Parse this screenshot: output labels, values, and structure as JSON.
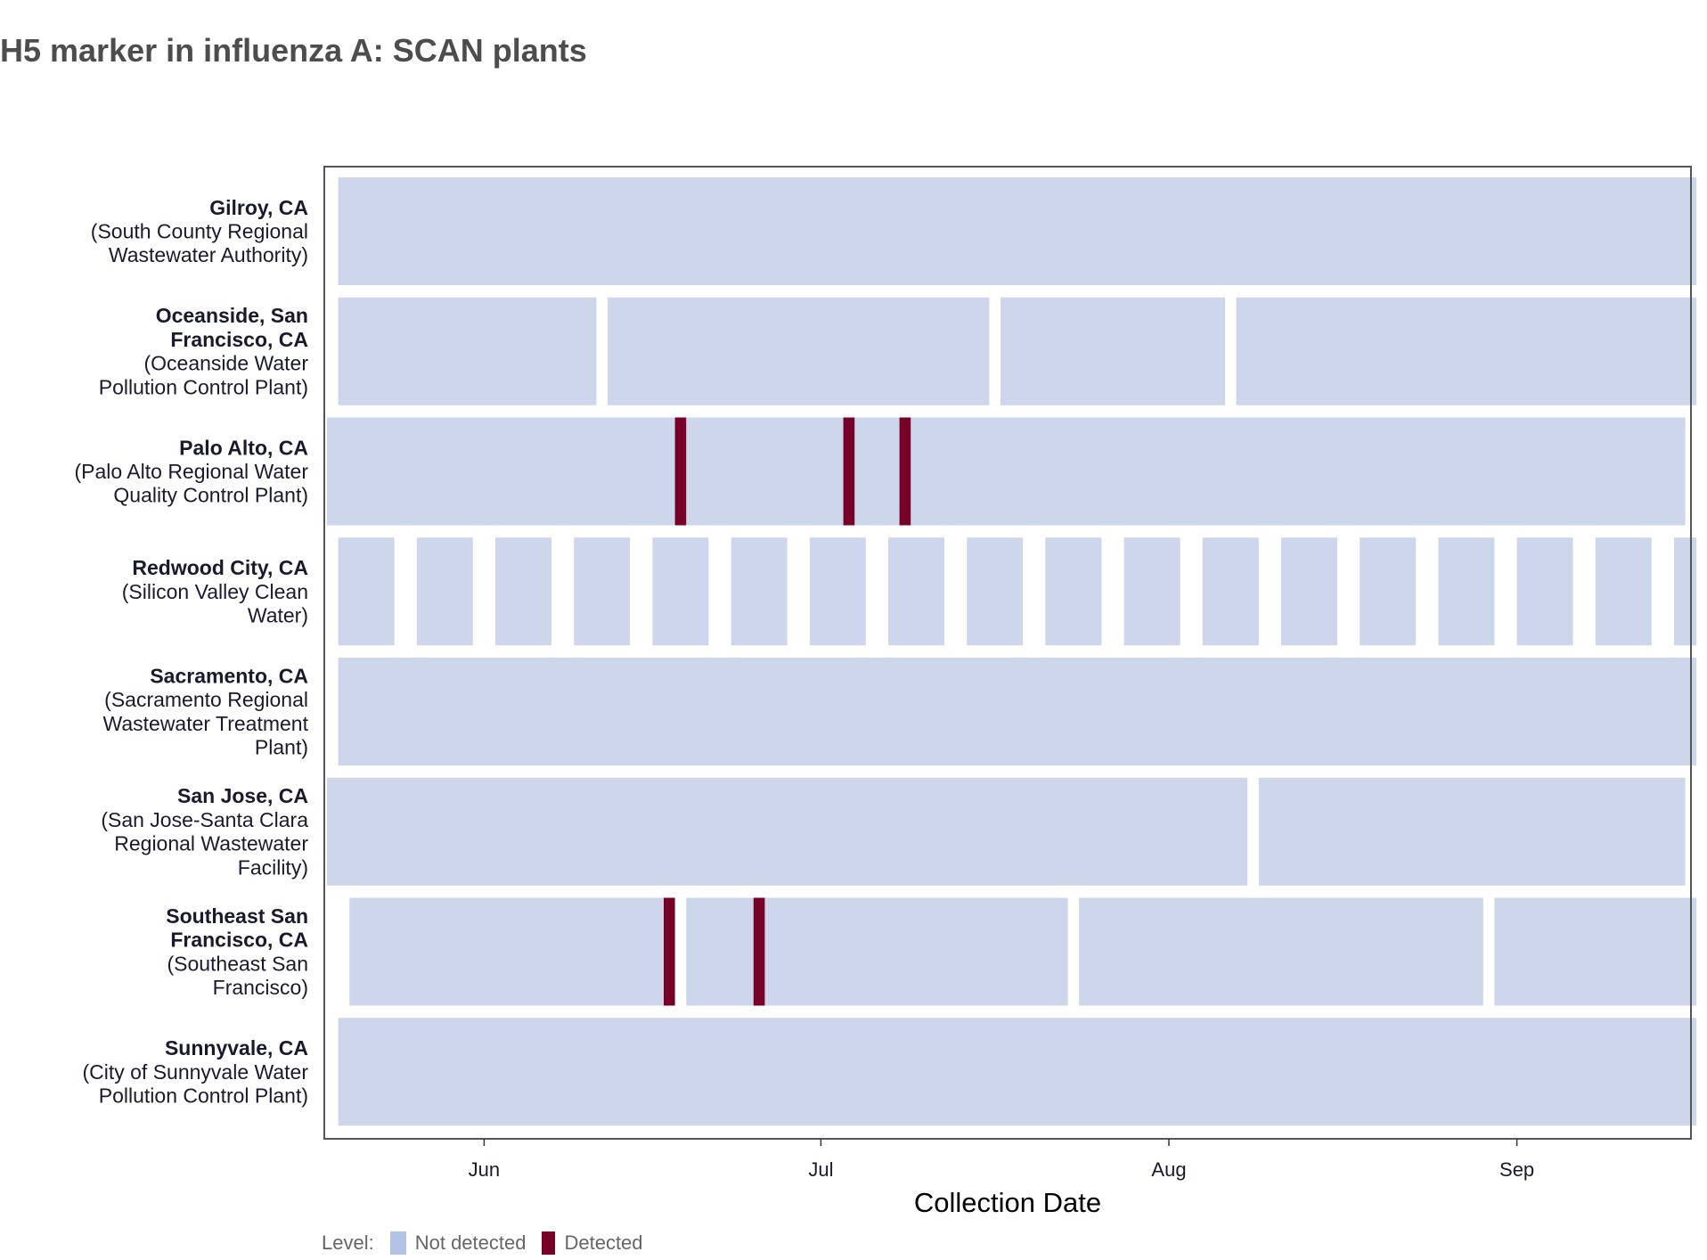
{
  "title": "H5 marker in influenza A: SCAN plants",
  "colors": {
    "not_detected": "#cdd6eb",
    "detected": "#760028",
    "legend_not_detected": "#b3c3e6",
    "panel_border": "#555555",
    "text": "#1a1a2e"
  },
  "chart_data": {
    "type": "heatmap",
    "title": "H5 marker in influenza A: SCAN plants",
    "xlabel": "Collection Date",
    "ylabel": "",
    "x_range": [
      "2024-05-18",
      "2024-09-17"
    ],
    "x_ticks": [
      {
        "label": "Jun",
        "date": "2024-06-01"
      },
      {
        "label": "Jul",
        "date": "2024-07-01"
      },
      {
        "label": "Aug",
        "date": "2024-08-01"
      },
      {
        "label": "Sep",
        "date": "2024-09-01"
      }
    ],
    "legend": {
      "title": "Level:",
      "entries": [
        {
          "label": "Not detected",
          "key": "not_detected"
        },
        {
          "label": "Detected",
          "key": "detected"
        }
      ]
    },
    "series": [
      {
        "name": "Gilroy, CA",
        "facility": "(South County Regional Wastewater Authority)",
        "name_lines": [
          "Gilroy, CA"
        ],
        "facility_lines": [
          "(South County Regional",
          "Wastewater Authority)"
        ],
        "not_detected_ranges": [
          [
            "2024-05-19",
            "2024-09-16"
          ]
        ],
        "detected_dates": []
      },
      {
        "name": "Oceanside, San Francisco, CA",
        "facility": "(Oceanside Water Pollution Control Plant)",
        "name_lines": [
          "Oceanside, San",
          "Francisco, CA"
        ],
        "facility_lines": [
          "(Oceanside Water",
          "Pollution Control Plant)"
        ],
        "not_detected_ranges": [
          [
            "2024-05-19",
            "2024-06-10"
          ],
          [
            "2024-06-12",
            "2024-07-15"
          ],
          [
            "2024-07-17",
            "2024-08-05"
          ],
          [
            "2024-08-07",
            "2024-09-16"
          ]
        ],
        "detected_dates": []
      },
      {
        "name": "Palo Alto, CA",
        "facility": "(Palo Alto Regional Water Quality Control Plant)",
        "name_lines": [
          "Palo Alto, CA"
        ],
        "facility_lines": [
          "(Palo Alto Regional Water",
          "Quality Control Plant)"
        ],
        "not_detected_ranges": [
          [
            "2024-05-18",
            "2024-09-15"
          ]
        ],
        "detected_dates": [
          "2024-06-18",
          "2024-07-03",
          "2024-07-08"
        ]
      },
      {
        "name": "Redwood City, CA",
        "facility": "(Silicon Valley Clean Water)",
        "name_lines": [
          "Redwood City, CA"
        ],
        "facility_lines": [
          "(Silicon Valley Clean",
          "Water)"
        ],
        "not_detected_ranges": [
          [
            "2024-05-19",
            "2024-05-23"
          ],
          [
            "2024-05-26",
            "2024-05-30"
          ],
          [
            "2024-06-02",
            "2024-06-06"
          ],
          [
            "2024-06-09",
            "2024-06-13"
          ],
          [
            "2024-06-16",
            "2024-06-20"
          ],
          [
            "2024-06-23",
            "2024-06-27"
          ],
          [
            "2024-06-30",
            "2024-07-04"
          ],
          [
            "2024-07-07",
            "2024-07-11"
          ],
          [
            "2024-07-14",
            "2024-07-18"
          ],
          [
            "2024-07-21",
            "2024-07-25"
          ],
          [
            "2024-07-28",
            "2024-08-01"
          ],
          [
            "2024-08-04",
            "2024-08-08"
          ],
          [
            "2024-08-11",
            "2024-08-15"
          ],
          [
            "2024-08-18",
            "2024-08-22"
          ],
          [
            "2024-08-25",
            "2024-08-29"
          ],
          [
            "2024-09-01",
            "2024-09-05"
          ],
          [
            "2024-09-08",
            "2024-09-12"
          ],
          [
            "2024-09-15",
            "2024-09-16"
          ]
        ],
        "detected_dates": []
      },
      {
        "name": "Sacramento, CA",
        "facility": "(Sacramento Regional Wastewater Treatment Plant)",
        "name_lines": [
          "Sacramento, CA"
        ],
        "facility_lines": [
          "(Sacramento Regional",
          "Wastewater Treatment",
          "Plant)"
        ],
        "not_detected_ranges": [
          [
            "2024-05-19",
            "2024-09-16"
          ]
        ],
        "detected_dates": []
      },
      {
        "name": "San Jose, CA",
        "facility": "(San Jose-Santa Clara Regional Wastewater Facility)",
        "name_lines": [
          "San Jose, CA"
        ],
        "facility_lines": [
          "(San Jose-Santa Clara",
          "Regional Wastewater",
          "Facility)"
        ],
        "not_detected_ranges": [
          [
            "2024-05-18",
            "2024-08-07"
          ],
          [
            "2024-08-09",
            "2024-09-15"
          ]
        ],
        "detected_dates": []
      },
      {
        "name": "Southeast San Francisco, CA",
        "facility": "(Southeast San Francisco)",
        "name_lines": [
          "Southeast San",
          "Francisco, CA"
        ],
        "facility_lines": [
          "(Southeast San",
          "Francisco)"
        ],
        "not_detected_ranges": [
          [
            "2024-05-20",
            "2024-06-16"
          ],
          [
            "2024-06-19",
            "2024-07-22"
          ],
          [
            "2024-07-24",
            "2024-08-28"
          ],
          [
            "2024-08-30",
            "2024-09-16"
          ]
        ],
        "detected_dates": [
          "2024-06-17",
          "2024-06-25"
        ]
      },
      {
        "name": "Sunnyvale, CA",
        "facility": "(City of Sunnyvale Water Pollution Control Plant)",
        "name_lines": [
          "Sunnyvale, CA"
        ],
        "facility_lines": [
          "(City of Sunnyvale Water",
          "Pollution Control Plant)"
        ],
        "not_detected_ranges": [
          [
            "2024-05-19",
            "2024-09-16"
          ]
        ],
        "detected_dates": []
      }
    ]
  }
}
